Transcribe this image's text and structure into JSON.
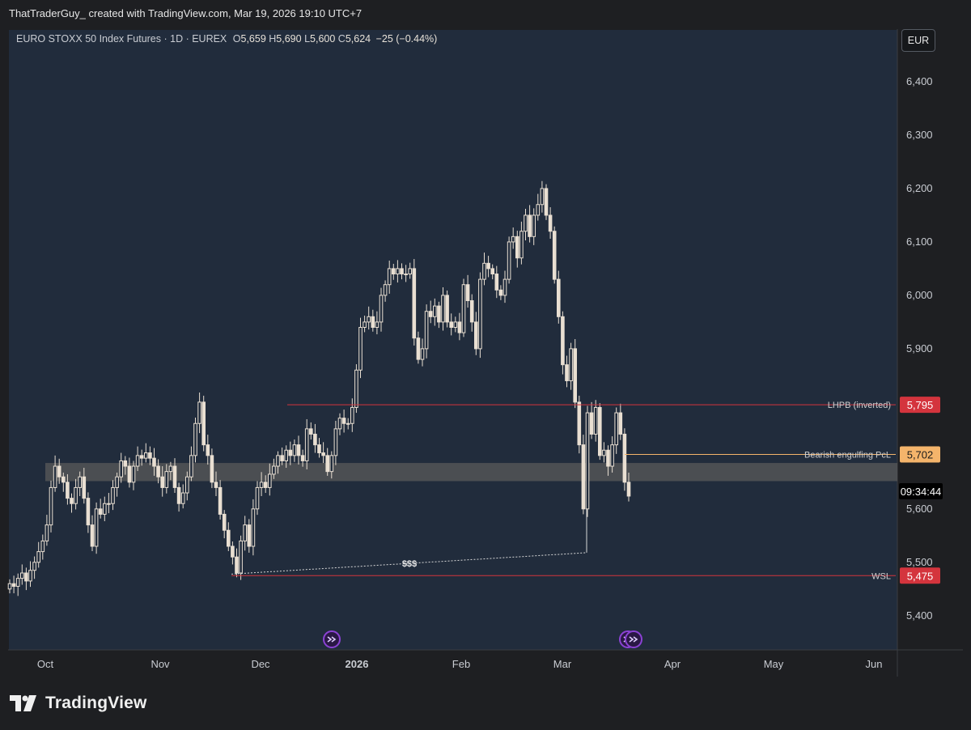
{
  "header": {
    "attribution": "ThatTraderGuy_ created with TradingView.com, Mar 19, 2026 19:10 UTC+7"
  },
  "legend": {
    "symbol": "EURO STOXX 50 Index Futures · 1D · EUREX",
    "o_label": "O",
    "o_value": "5,659",
    "h_label": "H",
    "h_value": "5,690",
    "l_label": "L",
    "l_value": "5,600",
    "c_label": "C",
    "c_value": "5,624",
    "change": "−25 (−0.44%)"
  },
  "currency": "EUR",
  "countdown": "09:34:44",
  "footer": {
    "brand": "TradingView"
  },
  "colors": {
    "background": "#212c3c",
    "candle": "#e9dfd2",
    "resistance": "#d4343d",
    "support_level": "#f4b46b",
    "zone": "#5a5a5a",
    "event_marker": "#8b42d4"
  },
  "chart_data": {
    "type": "candlestick",
    "title": "EURO STOXX 50 Index Futures",
    "interval": "1D",
    "y_axis": {
      "ticks": [
        5400,
        5500,
        5600,
        5700,
        5800,
        5900,
        6000,
        6100,
        6200,
        6300,
        6400
      ],
      "tick_labels": [
        "5,400",
        "5,500",
        "5,600",
        "5,700",
        "5,800",
        "5,900",
        "6,000",
        "6,100",
        "6,200",
        "6,300",
        "6,400"
      ],
      "ylim": [
        5336,
        6497
      ]
    },
    "x_axis": {
      "labels": [
        "Oct",
        "Nov",
        "Dec",
        "2026",
        "Feb",
        "Mar",
        "Apr",
        "May",
        "Jun"
      ],
      "bold_label": "2026"
    },
    "candles": [
      {
        "close": 5460
      },
      {
        "close": 5455
      },
      {
        "close": 5470
      },
      {
        "close": 5480
      },
      {
        "close": 5465
      },
      {
        "close": 5485
      },
      {
        "close": 5500
      },
      {
        "close": 5520
      },
      {
        "close": 5540
      },
      {
        "close": 5570
      },
      {
        "close": 5640
      },
      {
        "close": 5680
      },
      {
        "close": 5660
      },
      {
        "close": 5650
      },
      {
        "close": 5620
      },
      {
        "close": 5610
      },
      {
        "close": 5640
      },
      {
        "close": 5660
      },
      {
        "close": 5620
      },
      {
        "close": 5570
      },
      {
        "close": 5530
      },
      {
        "close": 5600
      },
      {
        "close": 5590
      },
      {
        "close": 5610
      },
      {
        "close": 5610
      },
      {
        "close": 5640
      },
      {
        "close": 5660
      },
      {
        "close": 5690
      },
      {
        "close": 5680
      },
      {
        "close": 5650
      },
      {
        "close": 5680
      },
      {
        "close": 5700
      },
      {
        "close": 5695
      },
      {
        "close": 5705
      },
      {
        "close": 5695
      },
      {
        "close": 5680
      },
      {
        "close": 5660
      },
      {
        "close": 5640
      },
      {
        "close": 5670
      },
      {
        "close": 5680
      },
      {
        "close": 5640
      },
      {
        "close": 5610
      },
      {
        "close": 5630
      },
      {
        "close": 5660
      },
      {
        "close": 5700
      },
      {
        "close": 5760
      },
      {
        "close": 5800
      },
      {
        "close": 5720
      },
      {
        "close": 5700
      },
      {
        "close": 5650
      },
      {
        "close": 5640
      },
      {
        "close": 5590
      },
      {
        "close": 5560
      },
      {
        "close": 5530
      },
      {
        "close": 5510
      },
      {
        "close": 5480
      },
      {
        "close": 5540
      },
      {
        "close": 5570
      },
      {
        "close": 5530
      },
      {
        "close": 5600
      },
      {
        "close": 5640
      },
      {
        "close": 5650
      },
      {
        "close": 5640
      },
      {
        "close": 5665
      },
      {
        "close": 5680
      },
      {
        "close": 5700
      },
      {
        "close": 5690
      },
      {
        "close": 5710
      },
      {
        "close": 5700
      },
      {
        "close": 5720
      },
      {
        "close": 5700
      },
      {
        "close": 5690
      },
      {
        "close": 5750
      },
      {
        "close": 5740
      },
      {
        "close": 5720
      },
      {
        "close": 5705
      },
      {
        "close": 5700
      },
      {
        "close": 5670
      },
      {
        "close": 5700
      },
      {
        "close": 5750
      },
      {
        "close": 5770
      },
      {
        "close": 5760
      },
      {
        "close": 5760
      },
      {
        "close": 5790
      },
      {
        "close": 5860
      },
      {
        "close": 5940
      },
      {
        "close": 5950
      },
      {
        "close": 5960
      },
      {
        "close": 5940
      },
      {
        "close": 5950
      },
      {
        "close": 6000
      },
      {
        "close": 6020
      },
      {
        "close": 6050
      },
      {
        "close": 6040
      },
      {
        "close": 6050
      },
      {
        "close": 6040
      },
      {
        "close": 6040
      },
      {
        "close": 6050
      },
      {
        "close": 5920
      },
      {
        "close": 5880
      },
      {
        "close": 5900
      },
      {
        "close": 5970
      },
      {
        "close": 5960
      },
      {
        "close": 5980
      },
      {
        "close": 5950
      },
      {
        "close": 6000
      },
      {
        "close": 5950
      },
      {
        "close": 5940
      },
      {
        "close": 5950
      },
      {
        "close": 5930
      },
      {
        "close": 6020
      },
      {
        "close": 5990
      },
      {
        "close": 5950
      },
      {
        "close": 5900
      },
      {
        "close": 6030
      },
      {
        "close": 6060
      },
      {
        "close": 6050
      },
      {
        "close": 6040
      },
      {
        "close": 6010
      },
      {
        "close": 6000
      },
      {
        "close": 6030
      },
      {
        "close": 6100
      },
      {
        "close": 6110
      },
      {
        "close": 6070
      },
      {
        "close": 6120
      },
      {
        "close": 6150
      },
      {
        "close": 6110
      },
      {
        "close": 6150
      },
      {
        "close": 6170
      },
      {
        "close": 6200
      },
      {
        "close": 6150
      },
      {
        "close": 6120
      },
      {
        "close": 6030
      },
      {
        "close": 5960
      },
      {
        "close": 5870
      },
      {
        "close": 5840
      },
      {
        "close": 5900
      },
      {
        "close": 5800
      },
      {
        "close": 5720
      },
      {
        "close": 5600
      },
      {
        "close": 5780
      },
      {
        "close": 5740
      },
      {
        "close": 5790
      },
      {
        "close": 5700
      },
      {
        "close": 5710
      },
      {
        "close": 5680
      },
      {
        "close": 5720
      },
      {
        "close": 5780
      },
      {
        "close": 5740
      },
      {
        "close": 5650
      },
      {
        "close": 5624
      }
    ],
    "annotations": [
      {
        "label": "LHPB (inverted)",
        "price": 5795,
        "price_label": "5,795",
        "color": "#d4343d"
      },
      {
        "label": "Bearish engulfing PcL",
        "price": 5702,
        "price_label": "5,702",
        "color": "#f4b46b"
      },
      {
        "label": "WSL",
        "price": 5475,
        "price_label": "5,475",
        "color": "#d4343d"
      },
      {
        "label": "$$$",
        "kind": "liquidity-sweep-line"
      }
    ],
    "zone": {
      "from": 5652,
      "to": 5686
    }
  }
}
